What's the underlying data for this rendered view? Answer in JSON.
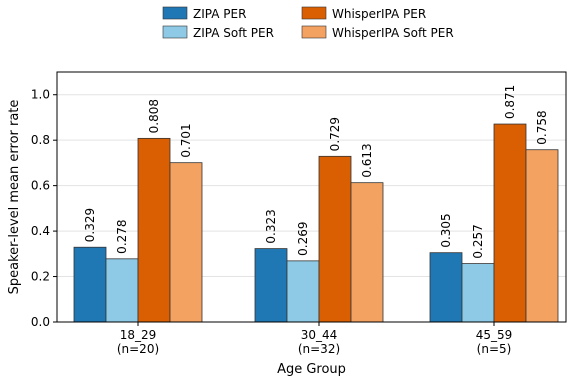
{
  "chart_data": {
    "type": "bar",
    "title": "",
    "xlabel": "Age Group",
    "ylabel": "Speaker-level mean error rate",
    "categories": [
      "18_29",
      "30_44",
      "45_59"
    ],
    "category_sublabels": [
      "(n=20)",
      "(n=32)",
      "(n=5)"
    ],
    "ylim": [
      0,
      1.1
    ],
    "yticks": [
      "0.0",
      "0.2",
      "0.4",
      "0.6",
      "0.8",
      "1.0"
    ],
    "grid": true,
    "legend_position": "top-center",
    "series": [
      {
        "name": "ZIPA PER",
        "color": "#1f77b4",
        "values": [
          0.329,
          0.323,
          0.305
        ],
        "labels": [
          "0.329",
          "0.323",
          "0.305"
        ]
      },
      {
        "name": "ZIPA Soft PER",
        "color": "#8ecae6",
        "values": [
          0.278,
          0.269,
          0.257
        ],
        "labels": [
          "0.278",
          "0.269",
          "0.257"
        ]
      },
      {
        "name": "WhisperIPA PER",
        "color": "#d95f02",
        "values": [
          0.808,
          0.729,
          0.871
        ],
        "labels": [
          "0.808",
          "0.729",
          "0.871"
        ]
      },
      {
        "name": "WhisperIPA Soft PER",
        "color": "#f4a261",
        "values": [
          0.701,
          0.613,
          0.758
        ],
        "labels": [
          "0.701",
          "0.613",
          "0.758"
        ]
      }
    ]
  }
}
